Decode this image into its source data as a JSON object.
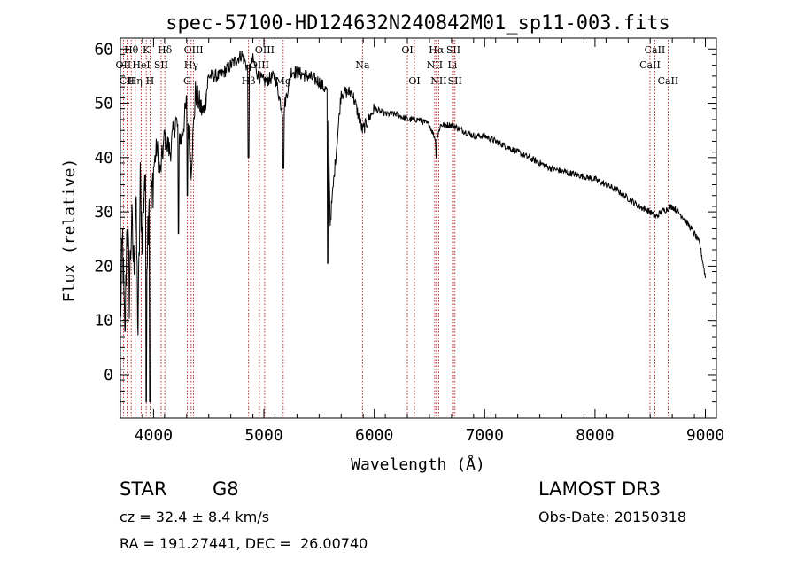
{
  "chart_data": {
    "type": "line",
    "title": "spec-57100-HD124632N240842M01_sp11-003.fits",
    "xlabel": "Wavelength (Å)",
    "ylabel": "Flux (relative)",
    "xlim": [
      3700,
      9100
    ],
    "ylim": [
      -8,
      62
    ],
    "xticks": [
      4000,
      5000,
      6000,
      7000,
      8000,
      9000
    ],
    "yticks": [
      0,
      10,
      20,
      30,
      40,
      50,
      60
    ],
    "line_color": "#000000",
    "marker_color": "#b00000",
    "series": [
      {
        "name": "flux",
        "x": [
          3700,
          3720,
          3740,
          3760,
          3780,
          3800,
          3820,
          3840,
          3860,
          3880,
          3900,
          3920,
          3940,
          3960,
          3980,
          4000,
          4030,
          4060,
          4100,
          4150,
          4200,
          4250,
          4300,
          4340,
          4380,
          4450,
          4500,
          4600,
          4700,
          4800,
          4861,
          4900,
          4950,
          5000,
          5100,
          5172,
          5250,
          5400,
          5500,
          5580,
          5600,
          5700,
          5800,
          5893,
          6000,
          6100,
          6200,
          6300,
          6400,
          6500,
          6563,
          6600,
          6700,
          6800,
          6900,
          7000,
          7200,
          7400,
          7600,
          7800,
          8000,
          8200,
          8400,
          8500,
          8550,
          8600,
          8700,
          8800,
          8900,
          8950,
          9000
        ],
        "y": [
          10,
          25,
          5,
          30,
          15,
          28,
          20,
          32,
          8,
          35,
          25,
          38,
          22,
          35,
          30,
          38,
          42,
          37,
          44,
          41,
          47,
          43,
          50,
          38,
          52,
          48,
          55,
          55,
          57,
          59,
          56,
          58,
          55,
          54,
          55,
          48,
          56,
          55,
          54,
          52,
          28,
          52,
          52,
          45,
          49,
          48,
          48,
          47,
          47,
          46,
          43,
          46,
          46,
          45,
          44,
          44,
          42,
          40,
          38,
          37,
          36,
          34,
          31,
          30,
          29,
          30,
          31,
          29,
          26,
          24,
          18
        ]
      }
    ],
    "spectral_lines": [
      {
        "label": "Hθ",
        "wave": 3798,
        "row": 1
      },
      {
        "label": "K",
        "wave": 3934,
        "row": 1
      },
      {
        "label": "Hδ",
        "wave": 4102,
        "row": 1
      },
      {
        "label": "OII",
        "wave": 3727,
        "row": 2
      },
      {
        "label": "HeI",
        "wave": 3889,
        "row": 2
      },
      {
        "label": "SII",
        "wave": 4069,
        "row": 2
      },
      {
        "label": "OIII",
        "wave": 4363,
        "row": 1
      },
      {
        "label": "Hγ",
        "wave": 4341,
        "row": 2
      },
      {
        "label": "G",
        "wave": 4305,
        "row": 3
      },
      {
        "label": "CII",
        "wave": 3760,
        "row": 3
      },
      {
        "label": "Hη",
        "wave": 3835,
        "row": 3
      },
      {
        "label": "H",
        "wave": 3968,
        "row": 3
      },
      {
        "label": "OIII",
        "wave": 5007,
        "row": 1
      },
      {
        "label": "OIII",
        "wave": 4959,
        "row": 2
      },
      {
        "label": "Hβ",
        "wave": 4861,
        "row": 3
      },
      {
        "label": "Mg",
        "wave": 5175,
        "row": 3
      },
      {
        "label": "Na",
        "wave": 5893,
        "row": 2
      },
      {
        "label": "OI",
        "wave": 6300,
        "row": 1
      },
      {
        "label": "OI",
        "wave": 6364,
        "row": 3
      },
      {
        "label": "Hα",
        "wave": 6563,
        "row": 1
      },
      {
        "label": "SII",
        "wave": 6717,
        "row": 1
      },
      {
        "label": "NII",
        "wave": 6548,
        "row": 2
      },
      {
        "label": "Li",
        "wave": 6708,
        "row": 2
      },
      {
        "label": "NII",
        "wave": 6584,
        "row": 3
      },
      {
        "label": "SII",
        "wave": 6731,
        "row": 3
      },
      {
        "label": "CaII",
        "wave": 8542,
        "row": 1
      },
      {
        "label": "CaII",
        "wave": 8498,
        "row": 2
      },
      {
        "label": "CaII",
        "wave": 8662,
        "row": 3
      }
    ]
  },
  "info": {
    "object_class": "STAR",
    "subclass": "G8",
    "survey": "LAMOST DR3",
    "redshift": "cz = 32.4 ± 8.4 km/s",
    "obs_date": "Obs-Date: 20150318",
    "coords": "RA = 191.27441, DEC =  26.00740"
  }
}
